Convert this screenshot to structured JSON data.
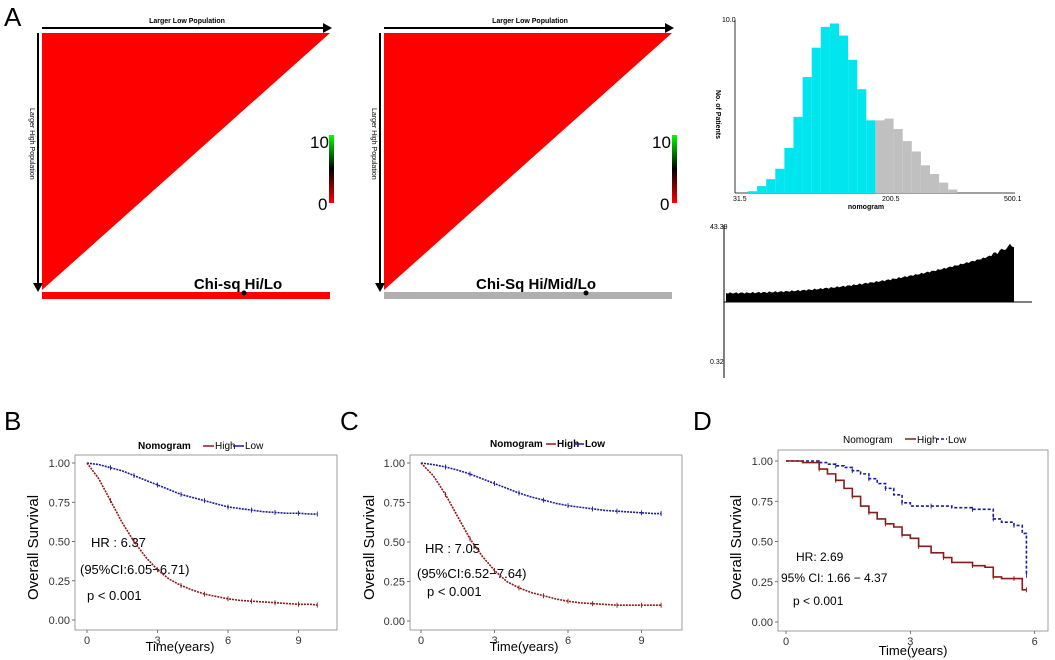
{
  "panel_labels": {
    "A": "A",
    "B": "B",
    "C": "C",
    "D": "D"
  },
  "xtile": {
    "x_axis_label": "Larger Low Population",
    "y_axis_label": "Larger High Population",
    "scale_max": "10",
    "scale_min": "0",
    "left_title": "Chi-sq Hi/Lo",
    "right_title": "Chi-Sq Hi/Mid/Lo",
    "colors": {
      "triangle": "#ff0000",
      "left_bar": "#ff0000",
      "right_bar": "#b0b0b0"
    }
  },
  "histogram": {
    "ylabel": "No. of Patients",
    "xlabel": "nomogram",
    "ymax_label": "10.0",
    "x_tick_labels": [
      "31.5",
      "200.5",
      "500.1"
    ],
    "cyan_bins": [
      1,
      4,
      8,
      14,
      26,
      44,
      67,
      84,
      96,
      98,
      91,
      77,
      60,
      42
    ],
    "gray_bins": [
      42,
      43,
      37,
      30,
      24,
      16,
      11,
      6,
      2
    ],
    "colors": {
      "low": "#00e5ee",
      "high": "#c0c0c0"
    }
  },
  "waterfall": {
    "top_label": "43.39",
    "bottom_label": "0.32"
  },
  "chart_data": [
    {
      "panel": "B",
      "type": "line",
      "legend_title": "Nomogram",
      "legend_entries": [
        "High",
        "Low"
      ],
      "xlabel": "Time(years)",
      "ylabel": "Overall Survival",
      "xticks": [
        0,
        3,
        6,
        9
      ],
      "yticks": [
        "0.00",
        "0.25",
        "0.50",
        "0.75",
        "1.00"
      ],
      "xlim": [
        0,
        10
      ],
      "ylim": [
        0,
        1
      ],
      "hr": "HR : 6.37",
      "ci": "(95%CI:6.05−6.71)",
      "p": "p < 0.001",
      "series": [
        {
          "name": "Low",
          "color": "#1a1a9e",
          "x": [
            0,
            0.5,
            1,
            1.5,
            2,
            2.5,
            3,
            3.5,
            4,
            4.5,
            5,
            5.5,
            6,
            6.5,
            7,
            7.5,
            8,
            8.5,
            9,
            9.5,
            9.8
          ],
          "y": [
            1.0,
            0.99,
            0.97,
            0.95,
            0.92,
            0.89,
            0.86,
            0.83,
            0.8,
            0.78,
            0.76,
            0.74,
            0.72,
            0.71,
            0.7,
            0.69,
            0.685,
            0.68,
            0.68,
            0.675,
            0.675
          ]
        },
        {
          "name": "High",
          "color": "#8b1a1a",
          "x": [
            0,
            0.5,
            1,
            1.5,
            2,
            2.5,
            3,
            3.5,
            4,
            4.5,
            5,
            5.5,
            6,
            6.5,
            7,
            7.5,
            8,
            8.5,
            9,
            9.5,
            9.8
          ],
          "y": [
            1.0,
            0.9,
            0.76,
            0.62,
            0.5,
            0.4,
            0.32,
            0.26,
            0.22,
            0.19,
            0.165,
            0.15,
            0.135,
            0.125,
            0.12,
            0.115,
            0.11,
            0.105,
            0.1,
            0.1,
            0.095
          ]
        }
      ]
    },
    {
      "panel": "C",
      "type": "line",
      "legend_title": "Nomogram",
      "legend_entries": [
        "High",
        "Low"
      ],
      "xlabel": "Time(years)",
      "ylabel": "Overall Survival",
      "xticks": [
        0,
        3,
        6,
        9
      ],
      "yticks": [
        "0.00",
        "0.25",
        "0.50",
        "0.75",
        "1.00"
      ],
      "xlim": [
        0,
        10
      ],
      "ylim": [
        0,
        1
      ],
      "hr": "HR : 7.05",
      "ci": "(95%CI:6.52−7.64)",
      "p": "p < 0.001",
      "series": [
        {
          "name": "Low",
          "color": "#1a1a9e",
          "x": [
            0,
            0.5,
            1,
            1.5,
            2,
            2.5,
            3,
            3.5,
            4,
            4.5,
            5,
            5.5,
            6,
            6.5,
            7,
            7.5,
            8,
            8.5,
            9,
            9.5,
            9.8
          ],
          "y": [
            1.0,
            0.99,
            0.975,
            0.955,
            0.93,
            0.9,
            0.87,
            0.84,
            0.81,
            0.785,
            0.765,
            0.745,
            0.73,
            0.72,
            0.71,
            0.7,
            0.695,
            0.69,
            0.685,
            0.68,
            0.68
          ]
        },
        {
          "name": "High",
          "color": "#8b1a1a",
          "x": [
            0,
            0.5,
            1,
            1.5,
            2,
            2.5,
            3,
            3.5,
            4,
            4.5,
            5,
            5.5,
            6,
            6.5,
            7,
            7.5,
            8,
            8.5,
            9,
            9.5,
            9.8
          ],
          "y": [
            1.0,
            0.92,
            0.8,
            0.66,
            0.52,
            0.41,
            0.32,
            0.25,
            0.21,
            0.18,
            0.16,
            0.14,
            0.125,
            0.115,
            0.11,
            0.105,
            0.1,
            0.1,
            0.1,
            0.1,
            0.1
          ]
        }
      ]
    },
    {
      "panel": "D",
      "type": "line",
      "legend_title": "Nomogram",
      "legend_entries": [
        "High",
        "Low"
      ],
      "xlabel": "Time(years)",
      "ylabel": "Overall Survival",
      "xticks": [
        0,
        3,
        6
      ],
      "yticks": [
        "0.00",
        "0.25",
        "0.50",
        "0.75",
        "1.00"
      ],
      "xlim": [
        0,
        6.2
      ],
      "ylim": [
        0,
        1
      ],
      "hr": "HR: 2.69",
      "ci": "95% CI: 1.66 − 4.37",
      "p": "p < 0.001",
      "series": [
        {
          "name": "Low",
          "color": "#1a1a9e",
          "x": [
            0,
            0.5,
            0.8,
            1.0,
            1.2,
            1.4,
            1.6,
            1.8,
            2.0,
            2.2,
            2.4,
            2.6,
            2.8,
            3.0,
            3.5,
            4.0,
            4.5,
            4.8,
            5.0,
            5.2,
            5.5,
            5.7,
            5.8
          ],
          "y": [
            1.0,
            1.0,
            0.99,
            0.98,
            0.97,
            0.96,
            0.94,
            0.92,
            0.89,
            0.86,
            0.83,
            0.79,
            0.74,
            0.72,
            0.72,
            0.71,
            0.7,
            0.7,
            0.64,
            0.62,
            0.6,
            0.55,
            0.29
          ]
        },
        {
          "name": "High",
          "color": "#8b1a1a",
          "x": [
            0,
            0.4,
            0.8,
            1.0,
            1.2,
            1.4,
            1.6,
            1.8,
            2.0,
            2.2,
            2.4,
            2.6,
            2.8,
            3.0,
            3.2,
            3.5,
            3.8,
            4.0,
            4.5,
            4.8,
            5.0,
            5.2,
            5.5,
            5.7,
            5.8
          ],
          "y": [
            1.0,
            0.99,
            0.95,
            0.92,
            0.88,
            0.83,
            0.78,
            0.72,
            0.68,
            0.64,
            0.61,
            0.59,
            0.54,
            0.52,
            0.47,
            0.43,
            0.4,
            0.37,
            0.35,
            0.34,
            0.28,
            0.27,
            0.27,
            0.2,
            0.2
          ]
        }
      ]
    }
  ]
}
